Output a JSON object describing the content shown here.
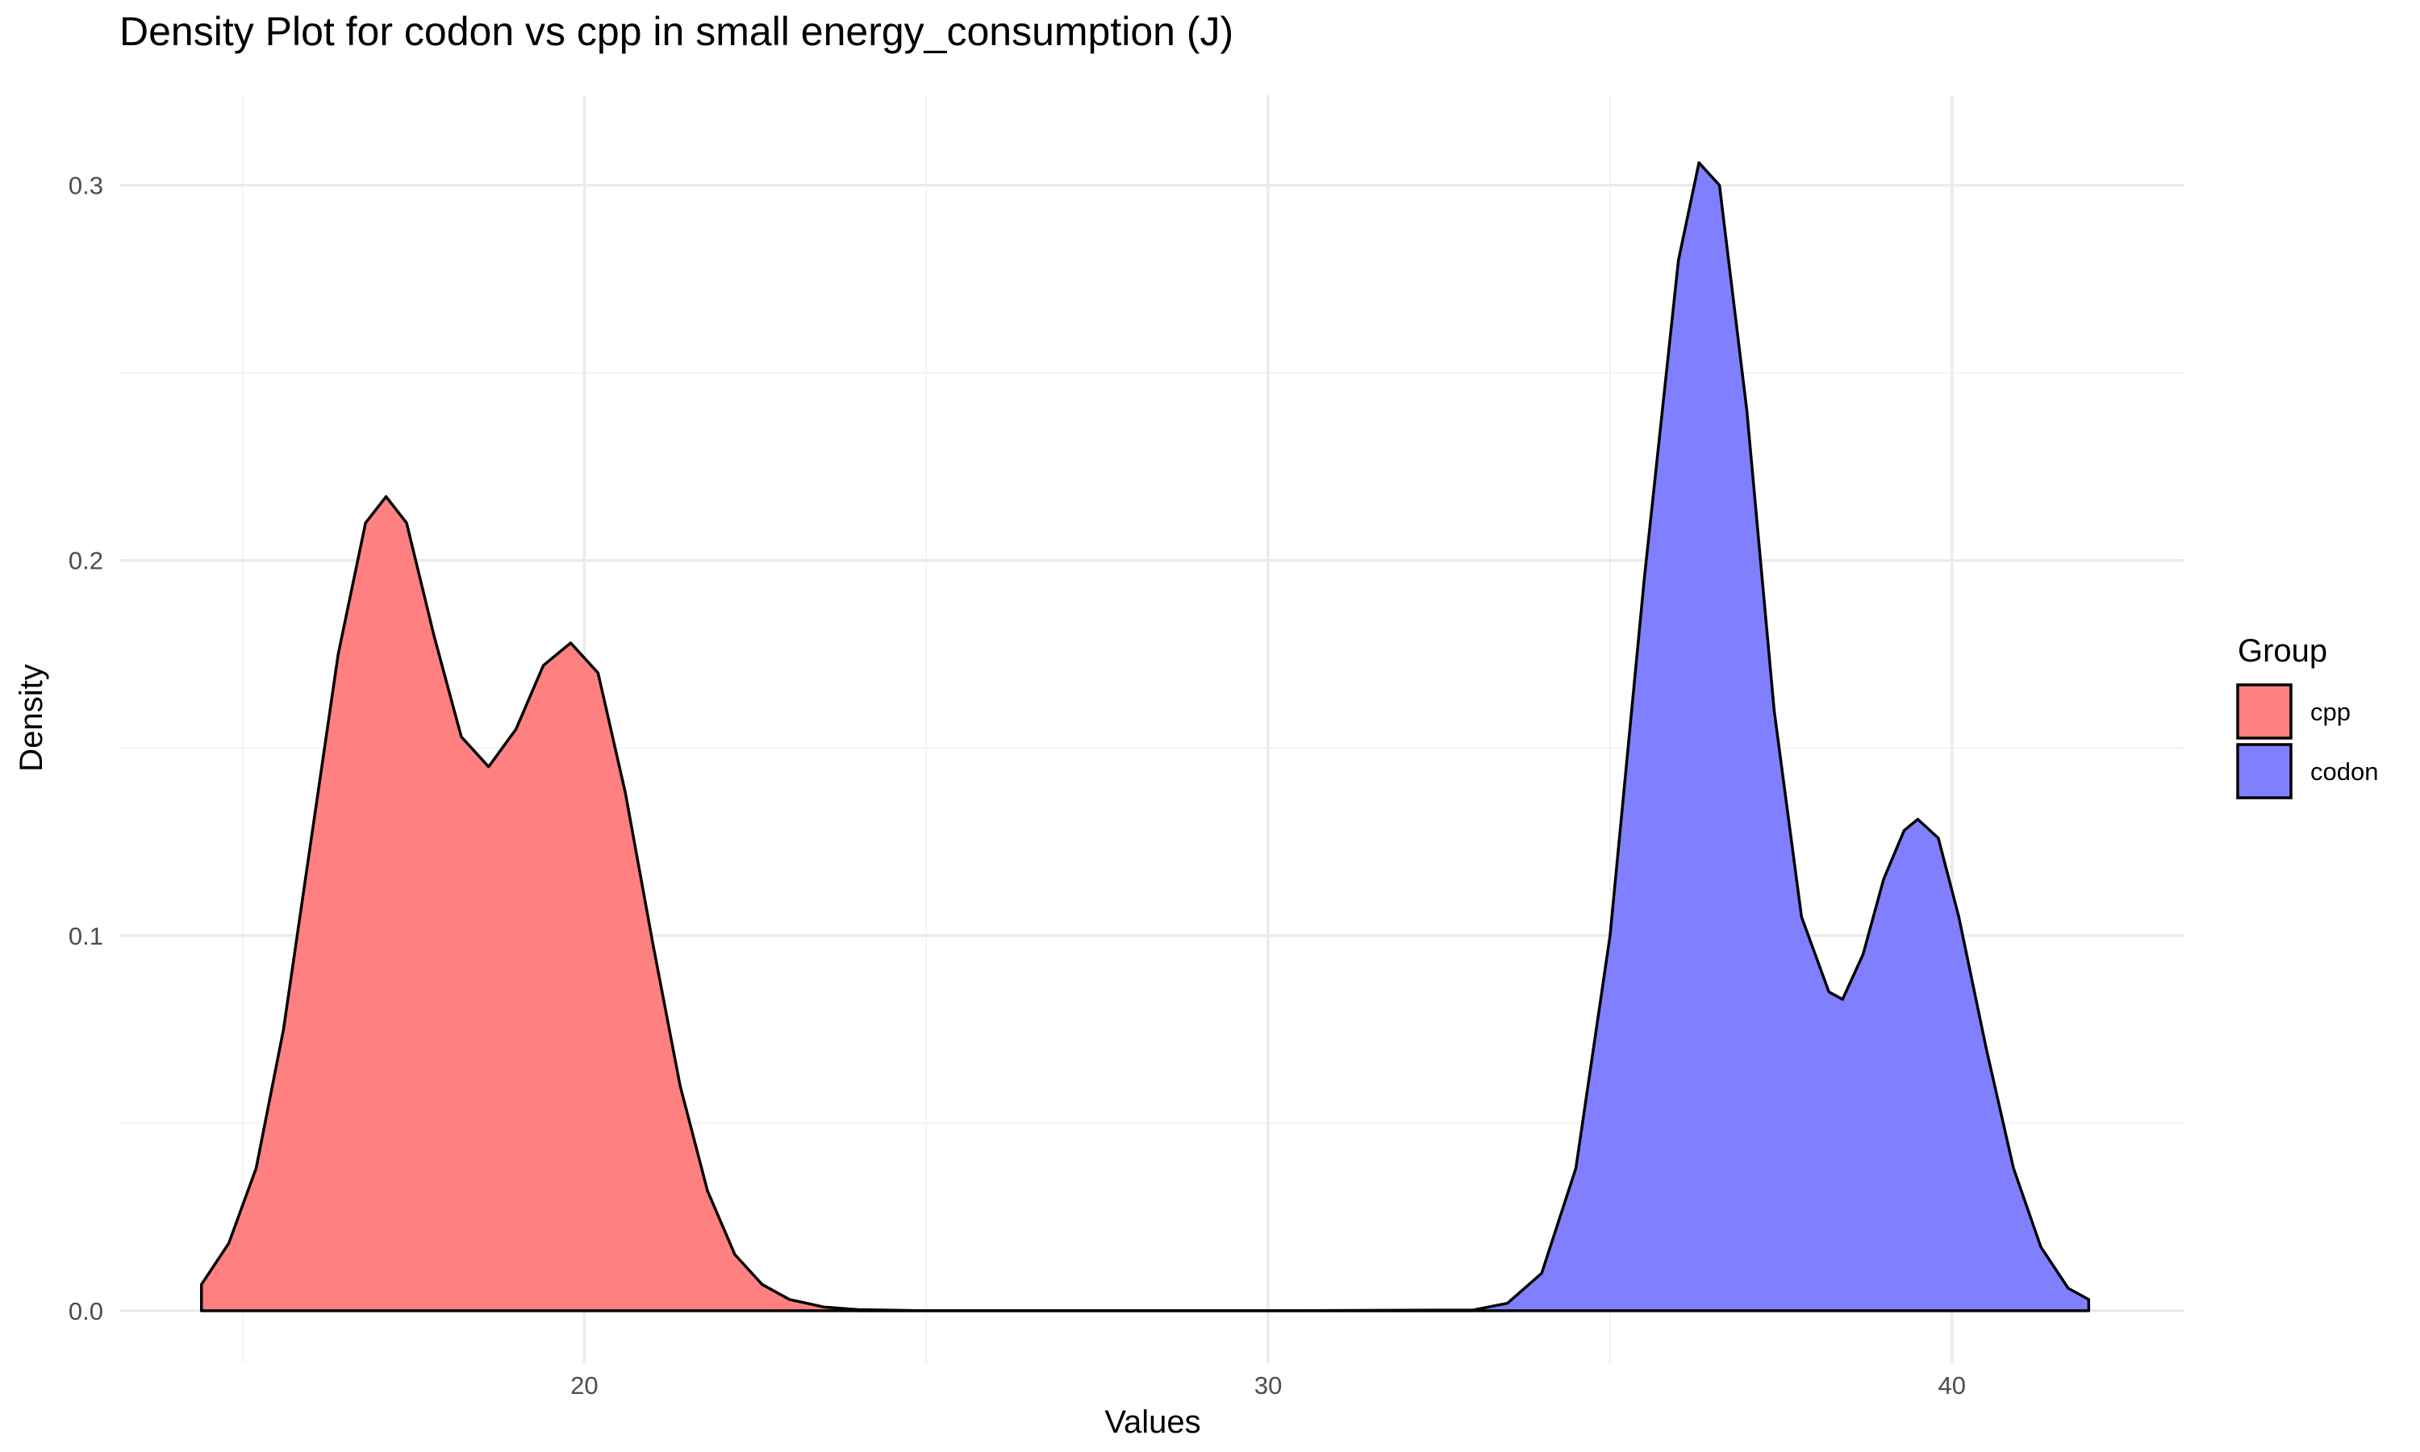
{
  "chart_data": {
    "type": "area",
    "title": "Density Plot for codon vs cpp in small energy_consumption (J)",
    "xlabel": "Values",
    "ylabel": "Density",
    "xlim": [
      13.2,
      43.4
    ],
    "ylim": [
      -0.014,
      0.324
    ],
    "x_ticks": [
      20,
      30,
      40
    ],
    "x_tick_labels": [
      "20",
      "30",
      "40"
    ],
    "x_minor_ticks": [
      15,
      25,
      35
    ],
    "y_ticks": [
      0.0,
      0.1,
      0.2,
      0.3
    ],
    "y_tick_labels": [
      "0.0",
      "0.1",
      "0.2",
      "0.3"
    ],
    "y_minor_ticks": [
      0.05,
      0.15,
      0.25
    ],
    "grid": true,
    "legend": {
      "title": "Group",
      "position": "right"
    },
    "series": [
      {
        "name": "cpp",
        "color": "#ff8080",
        "x": [
          14.4,
          14.8,
          15.2,
          15.6,
          16.0,
          16.4,
          16.8,
          17.1,
          17.4,
          17.8,
          18.2,
          18.6,
          19.0,
          19.4,
          19.8,
          20.2,
          20.6,
          21.0,
          21.4,
          21.8,
          22.2,
          22.6,
          23.0,
          23.5,
          24.0,
          25.0,
          30.0,
          33.0
        ],
        "y": [
          0.007,
          0.018,
          0.038,
          0.075,
          0.125,
          0.175,
          0.21,
          0.217,
          0.21,
          0.18,
          0.153,
          0.145,
          0.155,
          0.172,
          0.178,
          0.17,
          0.138,
          0.098,
          0.06,
          0.032,
          0.015,
          0.007,
          0.003,
          0.001,
          0.0003,
          0.0,
          0.0,
          0.0
        ]
      },
      {
        "name": "codon",
        "color": "#8080ff",
        "x": [
          24.0,
          30.0,
          33.0,
          33.5,
          34.0,
          34.5,
          35.0,
          35.5,
          36.0,
          36.3,
          36.6,
          37.0,
          37.4,
          37.8,
          38.2,
          38.4,
          38.7,
          39.0,
          39.3,
          39.5,
          39.8,
          40.1,
          40.5,
          40.9,
          41.3,
          41.7,
          42.0
        ],
        "y": [
          0.0,
          0.0,
          0.0002,
          0.002,
          0.01,
          0.038,
          0.1,
          0.195,
          0.28,
          0.306,
          0.3,
          0.24,
          0.16,
          0.105,
          0.085,
          0.083,
          0.095,
          0.115,
          0.128,
          0.131,
          0.126,
          0.105,
          0.07,
          0.038,
          0.017,
          0.006,
          0.003
        ]
      }
    ]
  }
}
